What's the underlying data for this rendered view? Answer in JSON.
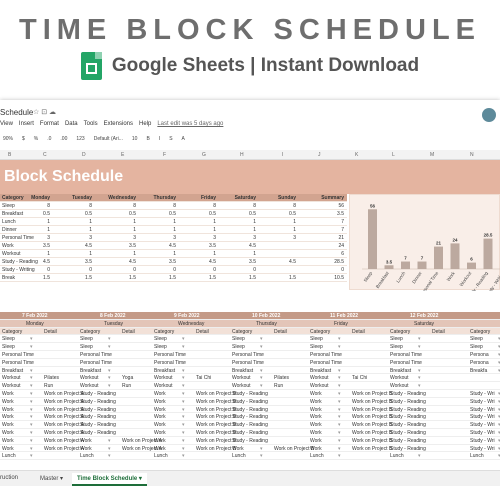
{
  "hero": {
    "title": "TIME BLOCK SCHEDULE",
    "subtitle": "Google Sheets | Instant Download"
  },
  "doc": {
    "title": "Schedule",
    "menu": [
      "View",
      "Insert",
      "Format",
      "Data",
      "Tools",
      "Extensions",
      "Help"
    ],
    "last_edit": "Last edit was 5 days ago",
    "toolbar": [
      "90%",
      "$",
      "%",
      ".0",
      ".00",
      "123",
      "Default (Ari...",
      "10",
      "B",
      "I",
      "S",
      "A"
    ]
  },
  "columns": [
    "B",
    "C",
    "D",
    "E",
    "F",
    "G",
    "H",
    "I",
    "J",
    "K",
    "L",
    "M",
    "N"
  ],
  "banner_title": "Block Schedule",
  "summary": {
    "headers": [
      "Category",
      "Monday",
      "Tuesday",
      "Wednesday",
      "Thursday",
      "Friday",
      "Saturday",
      "Sunday",
      "Summary"
    ],
    "rows": [
      [
        "Sleep",
        "8",
        "8",
        "8",
        "8",
        "8",
        "8",
        "8",
        "56"
      ],
      [
        "Breakfast",
        "0.5",
        "0.5",
        "0.5",
        "0.5",
        "0.5",
        "0.5",
        "0.5",
        "3.5"
      ],
      [
        "Lunch",
        "1",
        "1",
        "1",
        "1",
        "1",
        "1",
        "1",
        "7"
      ],
      [
        "Dinner",
        "1",
        "1",
        "1",
        "1",
        "1",
        "1",
        "1",
        "7"
      ],
      [
        "Personal Time",
        "3",
        "3",
        "3",
        "3",
        "3",
        "3",
        "3",
        "21"
      ],
      [
        "Work",
        "3.5",
        "4.5",
        "3.5",
        "4.5",
        "3.5",
        "4.5",
        "",
        "24"
      ],
      [
        "Workout",
        "1",
        "1",
        "1",
        "1",
        "1",
        "1",
        "",
        "6"
      ],
      [
        "Study - Reading",
        "4.5",
        "3.5",
        "4.5",
        "3.5",
        "4.5",
        "3.5",
        "4.5",
        "28.5"
      ],
      [
        "Study - Writing",
        "0",
        "0",
        "0",
        "0",
        "0",
        "0",
        "",
        "0"
      ],
      [
        "Break",
        "1.5",
        "1.5",
        "1.5",
        "1.5",
        "1.5",
        "1.5",
        "1.5",
        "10.5"
      ]
    ]
  },
  "chart_data": {
    "type": "bar",
    "categories": [
      "Sleep",
      "Breakfast",
      "Lunch",
      "Dinner",
      "Personal Time",
      "Work",
      "Workout",
      "Study - Reading",
      "Study - Writing"
    ],
    "values": [
      56,
      3.5,
      7,
      7,
      21,
      24,
      6,
      28.5,
      0
    ],
    "labels": [
      "56",
      "3.5",
      "7",
      "7",
      "21",
      "24",
      "6",
      "28.5",
      ""
    ],
    "title": "",
    "xlabel": "",
    "ylabel": ""
  },
  "week": {
    "dates": [
      "7 Feb 2022",
      "8 Feb 2022",
      "9 Feb 2022",
      "10 Feb 2022",
      "11 Feb 2022",
      "12 Feb 2022"
    ],
    "days": [
      "Monday",
      "Tuesday",
      "Wednesday",
      "Thursday",
      "Friday",
      "Saturday"
    ],
    "sub": [
      "Category",
      "Detail"
    ],
    "rows": [
      [
        [
          "Sleep",
          ""
        ],
        [
          "Sleep",
          ""
        ],
        [
          "Sleep",
          ""
        ],
        [
          "Sleep",
          ""
        ],
        [
          "Sleep",
          ""
        ],
        [
          "Sleep",
          ""
        ],
        [
          "Sleep",
          ""
        ]
      ],
      [
        [
          "Sleep",
          ""
        ],
        [
          "Sleep",
          ""
        ],
        [
          "Sleep",
          ""
        ],
        [
          "Sleep",
          ""
        ],
        [
          "Sleep",
          ""
        ],
        [
          "Sleep",
          ""
        ],
        [
          "Sleep",
          ""
        ]
      ],
      [
        [
          "Personal Time",
          ""
        ],
        [
          "Personal Time",
          ""
        ],
        [
          "Personal Time",
          ""
        ],
        [
          "Personal Time",
          ""
        ],
        [
          "Personal Time",
          ""
        ],
        [
          "Personal Time",
          ""
        ],
        [
          "Persona",
          ""
        ]
      ],
      [
        [
          "Personal Time",
          ""
        ],
        [
          "Personal Time",
          ""
        ],
        [
          "Personal Time",
          ""
        ],
        [
          "Personal Time",
          ""
        ],
        [
          "Personal Time",
          ""
        ],
        [
          "Personal Time",
          ""
        ],
        [
          "Persona",
          ""
        ]
      ],
      [
        [
          "Breakfast",
          ""
        ],
        [
          "Breakfast",
          ""
        ],
        [
          "Breakfast",
          ""
        ],
        [
          "Breakfast",
          ""
        ],
        [
          "Breakfast",
          ""
        ],
        [
          "Breakfast",
          ""
        ],
        [
          "Breakfa",
          ""
        ]
      ],
      [
        [
          "Workout",
          "Pilates"
        ],
        [
          "Workout",
          "Yoga"
        ],
        [
          "Workout",
          "Tai Chi"
        ],
        [
          "Workout",
          "Pilates"
        ],
        [
          "Workout",
          "Tai Chi"
        ],
        [
          "Workout",
          ""
        ],
        [
          "",
          ""
        ]
      ],
      [
        [
          "Workout",
          "Run"
        ],
        [
          "Workout",
          "Run"
        ],
        [
          "Workout",
          ""
        ],
        [
          "Workout",
          "Run"
        ],
        [
          "Workout",
          ""
        ],
        [
          "Workout",
          ""
        ],
        [
          "",
          ""
        ]
      ],
      [
        [
          "Work",
          "Work on Project A"
        ],
        [
          "Study - Reading",
          ""
        ],
        [
          "Work",
          "Work on Project B"
        ],
        [
          "Study - Reading",
          ""
        ],
        [
          "Work",
          "Work on Project B"
        ],
        [
          "Study - Reading",
          ""
        ],
        [
          "Study - Wri",
          ""
        ]
      ],
      [
        [
          "Work",
          "Work on Project A"
        ],
        [
          "Study - Reading",
          ""
        ],
        [
          "Work",
          "Work on Project B"
        ],
        [
          "Study - Reading",
          ""
        ],
        [
          "Work",
          "Work on Project B"
        ],
        [
          "Study - Reading",
          ""
        ],
        [
          "Study - Wri",
          ""
        ]
      ],
      [
        [
          "Work",
          "Work on Project A"
        ],
        [
          "Study - Reading",
          ""
        ],
        [
          "Work",
          "Work on Project B"
        ],
        [
          "Study - Reading",
          ""
        ],
        [
          "Work",
          "Work on Project B"
        ],
        [
          "Study - Reading",
          ""
        ],
        [
          "Study - Wri",
          ""
        ]
      ],
      [
        [
          "Work",
          "Work on Project A"
        ],
        [
          "Study - Reading",
          ""
        ],
        [
          "Work",
          "Work on Project B"
        ],
        [
          "Study - Reading",
          ""
        ],
        [
          "Work",
          "Work on Project B"
        ],
        [
          "Study - Reading",
          ""
        ],
        [
          "Study - Wri",
          ""
        ]
      ],
      [
        [
          "Work",
          "Work on Project A"
        ],
        [
          "Study - Reading",
          ""
        ],
        [
          "Work",
          "Work on Project B"
        ],
        [
          "Study - Reading",
          ""
        ],
        [
          "Work",
          "Work on Project B"
        ],
        [
          "Study - Reading",
          ""
        ],
        [
          "Study - Wri",
          ""
        ]
      ],
      [
        [
          "Work",
          "Work on Project A"
        ],
        [
          "Study - Reading",
          ""
        ],
        [
          "Work",
          "Work on Project B"
        ],
        [
          "Study - Reading",
          ""
        ],
        [
          "Work",
          "Work on Project B"
        ],
        [
          "Study - Reading",
          ""
        ],
        [
          "Study - Wri",
          ""
        ]
      ],
      [
        [
          "Work",
          "Work on Project A"
        ],
        [
          "Work",
          "Work on Project A"
        ],
        [
          "Work",
          "Work on Project B"
        ],
        [
          "Study - Reading",
          ""
        ],
        [
          "Work",
          "Work on Project B"
        ],
        [
          "Study - Reading",
          ""
        ],
        [
          "Study - Wri",
          ""
        ]
      ],
      [
        [
          "Work",
          "Work on Project A"
        ],
        [
          "Work",
          "Work on Project A"
        ],
        [
          "Work",
          "Work on Project B"
        ],
        [
          "Work",
          "Work on Project B"
        ],
        [
          "Work",
          "Work on Project B"
        ],
        [
          "Study - Reading",
          ""
        ],
        [
          "Study - Wri",
          ""
        ]
      ],
      [
        [
          "Lunch",
          ""
        ],
        [
          "Lunch",
          ""
        ],
        [
          "Lunch",
          ""
        ],
        [
          "Lunch",
          ""
        ],
        [
          "Lunch",
          ""
        ],
        [
          "Lunch",
          ""
        ],
        [
          "Lunch",
          ""
        ]
      ]
    ]
  },
  "tabs": [
    "ruction",
    "Master",
    "Time Block Schedule"
  ]
}
